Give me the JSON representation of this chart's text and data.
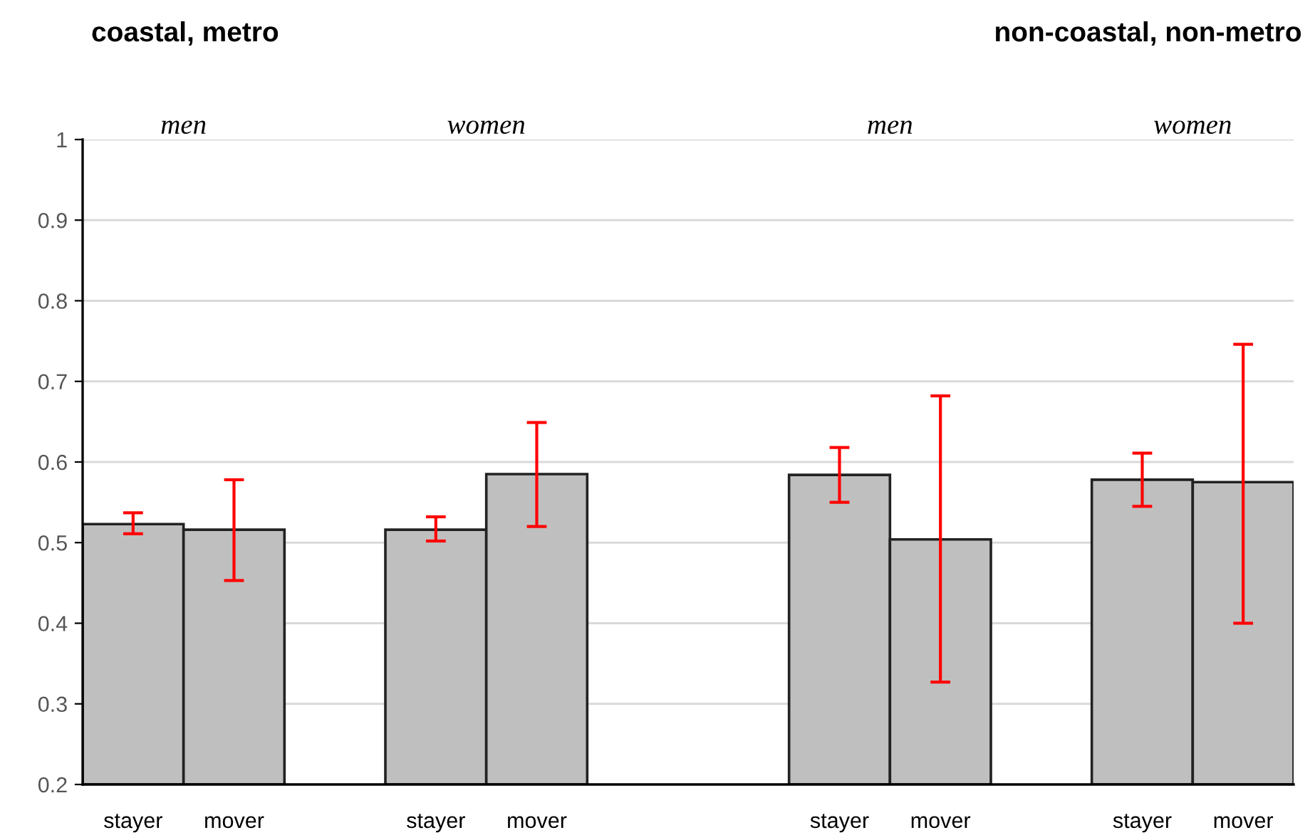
{
  "chart_data": {
    "type": "bar",
    "title": "coastal, metro",
    "subtitle": "non-coastal, non-metro",
    "categories": [
      "stayer",
      "mover",
      null,
      "stayer",
      "mover",
      null,
      null,
      "stayer",
      "mover",
      null,
      "stayer",
      "mover"
    ],
    "values": [
      0.523,
      0.516,
      null,
      0.516,
      0.585,
      null,
      null,
      0.584,
      0.504,
      null,
      0.578,
      0.575
    ],
    "errors": [
      [
        0.511,
        0.537
      ],
      [
        0.453,
        0.578
      ],
      null,
      [
        0.502,
        0.532
      ],
      [
        0.52,
        0.649
      ],
      null,
      null,
      [
        0.55,
        0.618
      ],
      [
        0.327,
        0.682
      ],
      null,
      [
        0.545,
        0.611
      ],
      [
        0.4,
        0.746
      ]
    ],
    "color": "#bfbfbf",
    "annotations": [
      "men",
      "women",
      "men",
      "women"
    ],
    "ylim": [
      0.2,
      1
    ],
    "yticks": [
      0.2,
      0.3,
      0.4,
      0.5,
      0.6,
      0.7,
      0.8,
      0.9,
      1
    ],
    "grid": "y",
    "legend": false
  }
}
